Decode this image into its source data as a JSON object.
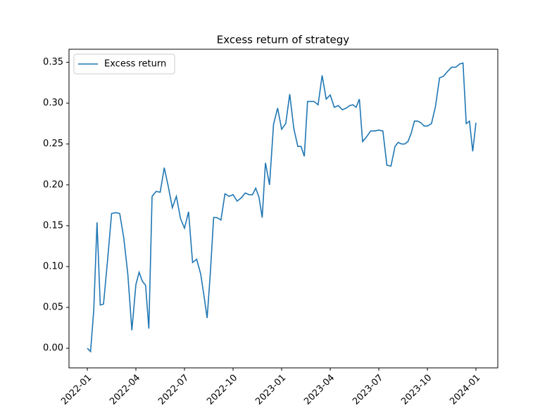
{
  "chart_data": {
    "type": "line",
    "title": "Excess return of strategy",
    "x": [
      "2022-01",
      "2022-01",
      "2022-01",
      "2022-01",
      "2022-01",
      "2022-02",
      "2022-02",
      "2022-02",
      "2022-02",
      "2022-03",
      "2022-03",
      "2022-03",
      "2022-03",
      "2022-04",
      "2022-04",
      "2022-04",
      "2022-04",
      "2022-04",
      "2022-05",
      "2022-05",
      "2022-05",
      "2022-05",
      "2022-06",
      "2022-06",
      "2022-06",
      "2022-06",
      "2022-07",
      "2022-07",
      "2022-07",
      "2022-07",
      "2022-08",
      "2022-08",
      "2022-08",
      "2022-08",
      "2022-08",
      "2022-09",
      "2022-09",
      "2022-09",
      "2022-09",
      "2022-10",
      "2022-10",
      "2022-10",
      "2022-10",
      "2022-11",
      "2022-11",
      "2022-11",
      "2022-11",
      "2022-11",
      "2022-12",
      "2022-12",
      "2022-12",
      "2022-12",
      "2023-01",
      "2023-01",
      "2023-01",
      "2023-01",
      "2023-02",
      "2023-02",
      "2023-02",
      "2023-02",
      "2023-02",
      "2023-03",
      "2023-03",
      "2023-03",
      "2023-03",
      "2023-04",
      "2023-04",
      "2023-04",
      "2023-04",
      "2023-05",
      "2023-05",
      "2023-05",
      "2023-05",
      "2023-05",
      "2023-06",
      "2023-06",
      "2023-06",
      "2023-06",
      "2023-07",
      "2023-07",
      "2023-07",
      "2023-07",
      "2023-08",
      "2023-08",
      "2023-08",
      "2023-08",
      "2023-08",
      "2023-09",
      "2023-09",
      "2023-09",
      "2023-09",
      "2023-09",
      "2023-10",
      "2023-10",
      "2023-10",
      "2023-10",
      "2023-11",
      "2023-11",
      "2023-11",
      "2023-11",
      "2023-12",
      "2023-12",
      "2023-12",
      "2023-12",
      "2023-12",
      "2024-01"
    ],
    "series": [
      {
        "name": "Excess return",
        "color": "#1f77b4",
        "values": [
          0.0,
          -0.004,
          0.047,
          0.154,
          0.053,
          0.054,
          0.108,
          0.165,
          0.166,
          0.165,
          0.135,
          0.091,
          0.022,
          0.078,
          0.093,
          0.082,
          0.077,
          0.024,
          0.186,
          0.192,
          0.191,
          0.221,
          0.198,
          0.172,
          0.186,
          0.159,
          0.147,
          0.167,
          0.105,
          0.109,
          0.091,
          0.065,
          0.037,
          0.093,
          0.16,
          0.16,
          0.157,
          0.189,
          0.186,
          0.188,
          0.18,
          0.184,
          0.19,
          0.188,
          0.188,
          0.196,
          0.185,
          0.16,
          0.227,
          0.2,
          0.274,
          0.294,
          0.268,
          0.275,
          0.311,
          0.269,
          0.247,
          0.247,
          0.235,
          0.302,
          0.302,
          0.302,
          0.298,
          0.334,
          0.305,
          0.31,
          0.295,
          0.297,
          0.292,
          0.294,
          0.297,
          0.298,
          0.295,
          0.305,
          0.253,
          0.259,
          0.266,
          0.266,
          0.267,
          0.266,
          0.224,
          0.223,
          0.247,
          0.252,
          0.25,
          0.25,
          0.253,
          0.263,
          0.278,
          0.278,
          0.276,
          0.272,
          0.272,
          0.275,
          0.296,
          0.331,
          0.333,
          0.339,
          0.344,
          0.344,
          0.348,
          0.349,
          0.275,
          0.278,
          0.241,
          0.276
        ]
      }
    ],
    "xlim": [
      "2021-12",
      "2024-02"
    ],
    "xticks": [
      "2022-01",
      "2022-04",
      "2022-07",
      "2022-10",
      "2023-01",
      "2023-04",
      "2023-07",
      "2023-10",
      "2024-01"
    ],
    "ylim": [
      -0.024,
      0.366
    ],
    "yticks": [
      {
        "value": 0,
        "label": "0.00"
      },
      {
        "value": 0.05,
        "label": "0.05"
      },
      {
        "value": 0.1,
        "label": "0.10"
      },
      {
        "value": 0.15,
        "label": "0.15"
      },
      {
        "value": 0.2,
        "label": "0.20"
      },
      {
        "value": 0.25,
        "label": "0.25"
      },
      {
        "value": 0.3,
        "label": "0.30"
      },
      {
        "value": 0.35,
        "label": "0.35"
      }
    ],
    "legend": "upper left"
  }
}
